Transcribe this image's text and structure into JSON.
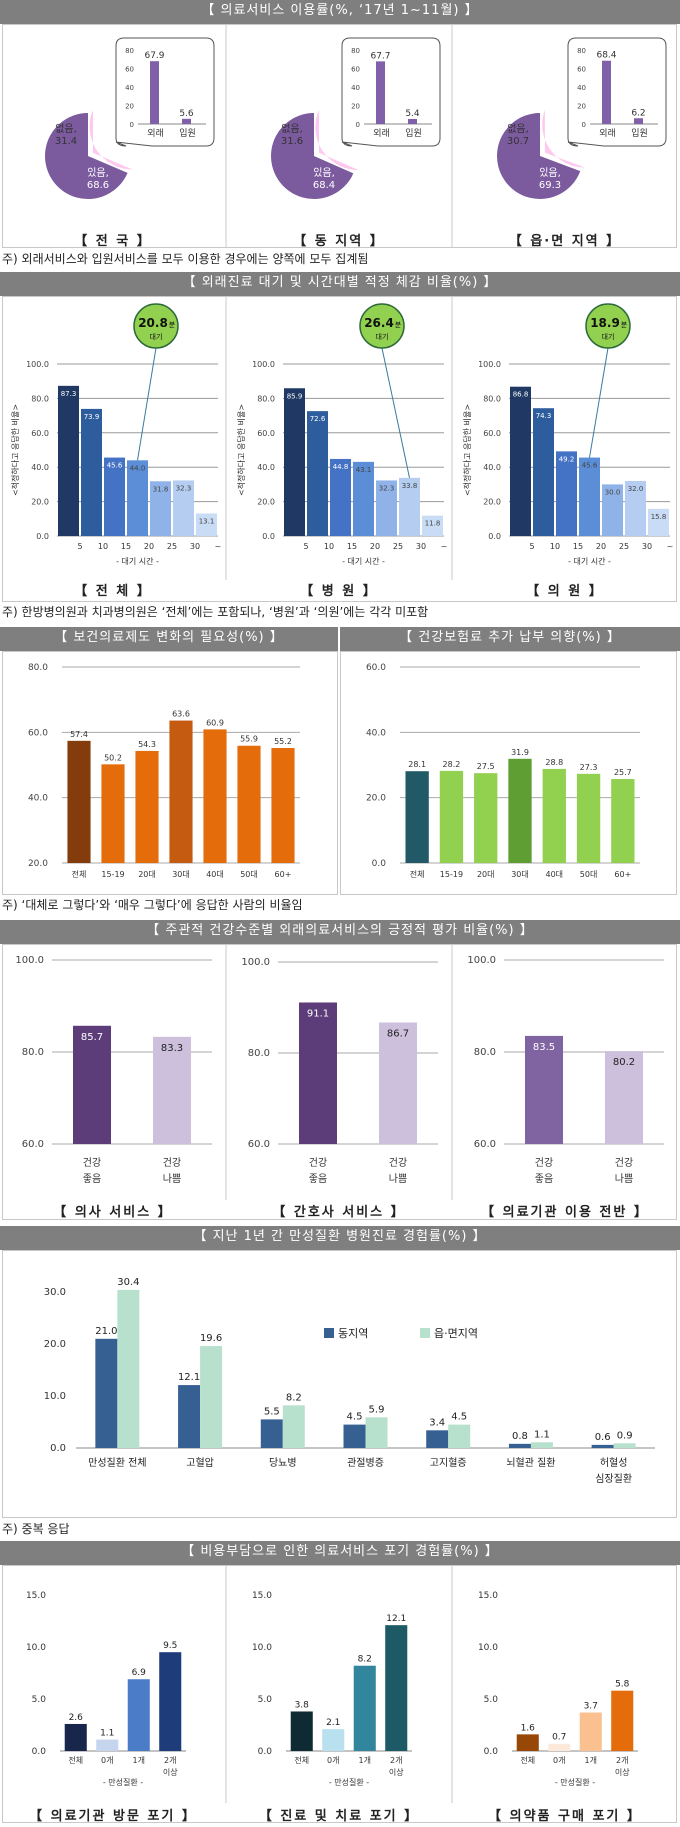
{
  "s1": {
    "banner": "【 의료서비스 이용률(%, ‘17년 1~11월) 】",
    "note": "주) 외래서비스와 입원서비스를 모두 이용한 경우에는 양쪽에 모두 집계됨",
    "colors": {
      "yes": "#7b5a9e",
      "no": "#ffc8ee",
      "bar": "#8060a8"
    },
    "chart_data": [
      {
        "type": "pie",
        "caption": "【 전 국 】",
        "no_label": "없음,",
        "no_value": "31.4",
        "yes_label": "있음,",
        "yes_value": "68.6",
        "slices": [
          {
            "name": "있음",
            "value": 68.6
          },
          {
            "name": "없음",
            "value": 31.4
          }
        ],
        "categories": [
          "외래",
          "입원"
        ],
        "values": [
          67.9,
          5.6
        ],
        "labels": [
          "67.9",
          "5.6"
        ],
        "ylim": [
          0,
          80
        ],
        "ticks": [
          "80",
          "60",
          "40",
          "20",
          "0"
        ]
      },
      {
        "type": "pie",
        "caption": "【 동 지역 】",
        "no_label": "없음,",
        "no_value": "31.6",
        "yes_label": "있음,",
        "yes_value": "68.4",
        "slices": [
          {
            "name": "있음",
            "value": 68.4
          },
          {
            "name": "없음",
            "value": 31.6
          }
        ],
        "categories": [
          "외래",
          "입원"
        ],
        "values": [
          67.7,
          5.4
        ],
        "labels": [
          "67.7",
          "5.4"
        ],
        "ylim": [
          0,
          80
        ],
        "ticks": [
          "80",
          "60",
          "40",
          "20",
          "0"
        ]
      },
      {
        "type": "pie",
        "caption": "【 읍·면 지역 】",
        "no_label": "없음,",
        "no_value": "30.7",
        "yes_label": "있음,",
        "yes_value": "69.3",
        "slices": [
          {
            "name": "있음",
            "value": 69.3
          },
          {
            "name": "없음",
            "value": 30.7
          }
        ],
        "categories": [
          "외래",
          "입원"
        ],
        "values": [
          68.4,
          6.2
        ],
        "labels": [
          "68.4",
          "6.2"
        ],
        "ylim": [
          0,
          80
        ],
        "ticks": [
          "80",
          "60",
          "40",
          "20",
          "0"
        ]
      }
    ]
  },
  "s2": {
    "banner": "【 외래진료 대기 및 시간대별 적정 체감 비율(%) 】",
    "note": "주) 한방병의원과 치과병의원은 ‘전체’에는 포함되나, ‘병원’과 ‘의원’에는 각각 미포함",
    "ylabel": "<적정하다고 응답한 비율>",
    "xlabel": "- 대기 시간 -",
    "unit": "분",
    "wait": "대기",
    "categories": [
      "5",
      "10",
      "15",
      "20",
      "25",
      "30",
      "~"
    ],
    "ticks": [
      "100.0",
      "80.0",
      "60.0",
      "40.0",
      "20.0",
      "0.0"
    ],
    "colors": [
      "#1f3864",
      "#2e5d9e",
      "#4472c4",
      "#5b8ed6",
      "#8fb3e8",
      "#b4cdf0",
      "#c9dcf5"
    ],
    "chart_data": [
      {
        "type": "bar",
        "caption": "【 전 체 】",
        "avg": "20.8",
        "values": [
          87.3,
          73.9,
          45.6,
          44.0,
          31.8,
          32.3,
          13.1
        ],
        "labels": [
          "87.3",
          "73.9",
          "45.6",
          "44.0",
          "31.8",
          "32.3",
          "13.1"
        ],
        "ylim": [
          0,
          100
        ]
      },
      {
        "type": "bar",
        "caption": "【 병 원 】",
        "avg": "26.4",
        "values": [
          85.9,
          72.6,
          44.8,
          43.1,
          32.3,
          33.8,
          11.8
        ],
        "labels": [
          "85.9",
          "72.6",
          "44.8",
          "43.1",
          "32.3",
          "33.8",
          "11.8"
        ],
        "ylim": [
          0,
          100
        ]
      },
      {
        "type": "bar",
        "caption": "【 의 원 】",
        "avg": "18.9",
        "values": [
          86.8,
          74.3,
          49.2,
          45.6,
          30.0,
          32.0,
          15.8
        ],
        "labels": [
          "86.8",
          "74.3",
          "49.2",
          "45.6",
          "30.0",
          "32.0",
          "15.8"
        ],
        "ylim": [
          0,
          100
        ]
      }
    ]
  },
  "s3": {
    "note": "주) ‘대체로 그렇다’와 ‘매우 그렇다’에 응답한 사람의 비율임",
    "chart_data": [
      {
        "type": "bar",
        "banner": "【 보건의료제도 변화의 필요성(%) 】",
        "categories": [
          "전체",
          "15-19",
          "20대",
          "30대",
          "40대",
          "50대",
          "60+"
        ],
        "values": [
          57.4,
          50.2,
          54.3,
          63.6,
          60.9,
          55.9,
          55.2
        ],
        "labels": [
          "57.4",
          "50.2",
          "54.3",
          "63.6",
          "60.9",
          "55.9",
          "55.2"
        ],
        "ylim": [
          20,
          80
        ],
        "ticks": [
          "80.0",
          "60.0",
          "40.0",
          "20.0"
        ],
        "colors": [
          "#843c0c",
          "#e46c0a",
          "#e46c0a",
          "#c55a11",
          "#e46c0a",
          "#e46c0a",
          "#e46c0a"
        ]
      },
      {
        "type": "bar",
        "banner": "【 건강보험료 추가 납부 의향(%) 】",
        "categories": [
          "전체",
          "15-19",
          "20대",
          "30대",
          "40대",
          "50대",
          "60+"
        ],
        "values": [
          28.1,
          28.2,
          27.5,
          31.9,
          28.8,
          27.3,
          25.7
        ],
        "labels": [
          "28.1",
          "28.2",
          "27.5",
          "31.9",
          "28.8",
          "27.3",
          "25.7"
        ],
        "ylim": [
          0,
          60
        ],
        "ticks": [
          "60.0",
          "40.0",
          "20.0",
          "0.0"
        ],
        "colors": [
          "#215967",
          "#92d050",
          "#92d050",
          "#5e9e33",
          "#92d050",
          "#92d050",
          "#92d050"
        ]
      }
    ]
  },
  "s4": {
    "banner": "【 주관적 건강수준별 외래의료서비스의 긍정적 평가 비율(%) 】",
    "categories": [
      [
        "건강",
        "좋음"
      ],
      [
        "건강",
        "나쁨"
      ]
    ],
    "chart_data": [
      {
        "type": "bar",
        "caption": "【 의사 서비스 】",
        "values": [
          85.7,
          83.3
        ],
        "labels": [
          "85.7",
          "83.3"
        ],
        "ylim": [
          60,
          100
        ],
        "ticks": [
          "100.0",
          "80.0",
          "60.0"
        ],
        "colors": [
          "#5c3d7a",
          "#ccc0dd"
        ]
      },
      {
        "type": "bar",
        "caption": "【 간호사 서비스 】",
        "values": [
          91.1,
          86.7
        ],
        "labels": [
          "91.1",
          "86.7"
        ],
        "ylim": [
          60,
          100
        ],
        "ticks": [
          "100.0",
          "80.0",
          "60.0"
        ],
        "colors": [
          "#5c3d7a",
          "#ccc0dd"
        ]
      },
      {
        "type": "bar",
        "caption": "【 의료기관 이용 전반 】",
        "values": [
          83.5,
          80.2
        ],
        "labels": [
          "83.5",
          "80.2"
        ],
        "ylim": [
          60,
          100
        ],
        "ticks": [
          "100.0",
          "80.0",
          "60.0"
        ],
        "colors": [
          "#8064a2",
          "#ccc0dd"
        ]
      }
    ]
  },
  "s5": {
    "banner": "【 지난 1년 간 만성질환 병원진료 경험률(%) 】",
    "note": "주) 중복 응답",
    "chart_data": {
      "type": "bar",
      "categories": [
        [
          "만성질환 전체"
        ],
        [
          "고혈압"
        ],
        [
          "당뇨병"
        ],
        [
          "관절병증"
        ],
        [
          "고지혈증"
        ],
        [
          "뇌혈관 질환"
        ],
        [
          "허혈성",
          "심장질환"
        ]
      ],
      "series": [
        {
          "name": "동지역",
          "color": "#376092",
          "values": [
            21.0,
            12.1,
            5.5,
            4.5,
            3.4,
            0.8,
            0.6
          ],
          "labels": [
            "21.0",
            "12.1",
            "5.5",
            "4.5",
            "3.4",
            "0.8",
            "0.6"
          ]
        },
        {
          "name": "읍·면지역",
          "color": "#b7e1cd",
          "values": [
            30.4,
            19.6,
            8.2,
            5.9,
            4.5,
            1.1,
            0.9
          ],
          "labels": [
            "30.4",
            "19.6",
            "8.2",
            "5.9",
            "4.5",
            "1.1",
            "0.9"
          ]
        }
      ],
      "ylim": [
        0,
        30
      ],
      "ticks": [
        "30.0",
        "20.0",
        "10.0",
        "0.0"
      ]
    }
  },
  "s6": {
    "banner": "【 비용부담으로 인한 의료서비스 포기 경험률(%) 】",
    "categories": [
      "전체",
      "0개",
      "1개",
      "2개"
    ],
    "extra": "이상",
    "xlabel": "- 만성질환 -",
    "chart_data": [
      {
        "type": "bar",
        "caption": "【 의료기관 방문 포기 】",
        "values": [
          2.6,
          1.1,
          6.9,
          9.5
        ],
        "labels": [
          "2.6",
          "1.1",
          "6.9",
          "9.5"
        ],
        "ylim": [
          0,
          15
        ],
        "ticks": [
          "15.0",
          "10.0",
          "5.0",
          "0.0"
        ],
        "colors": [
          "#17264a",
          "#c5d5ee",
          "#4a7cc7",
          "#1f3c7a"
        ]
      },
      {
        "type": "bar",
        "caption": "【 진료 및 치료 포기 】",
        "values": [
          3.8,
          2.1,
          8.2,
          12.1
        ],
        "labels": [
          "3.8",
          "2.1",
          "8.2",
          "12.1"
        ],
        "ylim": [
          0,
          15
        ],
        "ticks": [
          "15.0",
          "10.0",
          "5.0",
          "0.0"
        ],
        "colors": [
          "#0e2a33",
          "#b8e0ee",
          "#31859c",
          "#1e5966"
        ]
      },
      {
        "type": "bar",
        "caption": "【 의약품 구매 포기 】",
        "values": [
          1.6,
          0.7,
          3.7,
          5.8
        ],
        "labels": [
          "1.6",
          "0.7",
          "3.7",
          "5.8"
        ],
        "ylim": [
          0,
          15
        ],
        "ticks": [
          "15.0",
          "10.0",
          "5.0",
          "0.0"
        ],
        "colors": [
          "#974706",
          "#fde9d9",
          "#fac090",
          "#e46c0a"
        ]
      }
    ]
  }
}
